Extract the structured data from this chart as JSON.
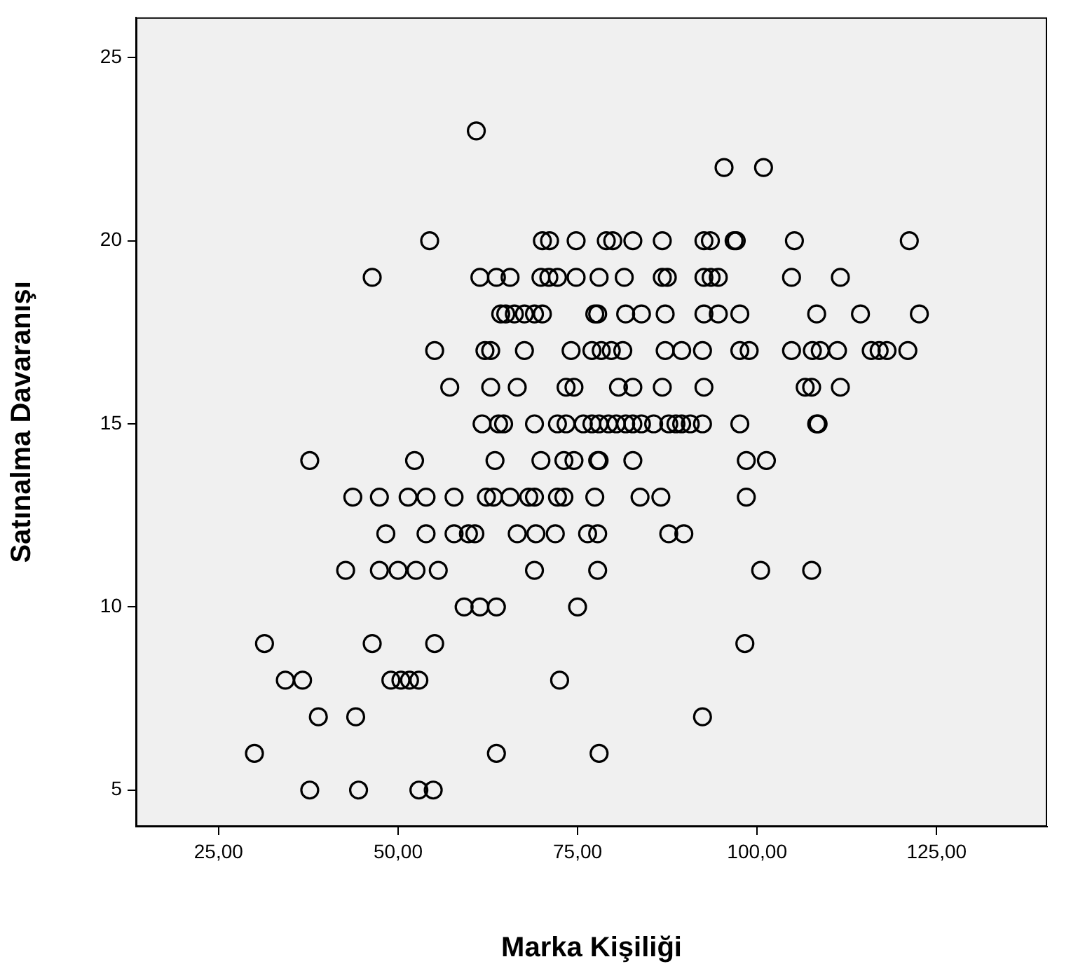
{
  "chart_data": {
    "type": "scatter",
    "xlabel": "Marka Kişiliği",
    "ylabel": "Satınalma Davaranışı",
    "xlim": [
      13.5,
      140.4
    ],
    "ylim": [
      4.0,
      26.1
    ],
    "xticks": [
      {
        "value": 25,
        "label": "25,00"
      },
      {
        "value": 50,
        "label": "50,00"
      },
      {
        "value": 75,
        "label": "75,00"
      },
      {
        "value": 100,
        "label": "100,00"
      },
      {
        "value": 125,
        "label": "125,00"
      }
    ],
    "yticks": [
      5,
      10,
      15,
      20,
      25
    ],
    "grid": false,
    "legend": false,
    "marker": "circle",
    "series": [
      {
        "color": "#000000",
        "x": [
          60.9,
          95.4,
          100.9,
          54.4,
          70.1,
          71.1,
          74.8,
          79.0,
          79.9,
          82.7,
          86.8,
          92.6,
          93.5,
          96.8,
          97.1,
          105.2,
          121.2,
          46.4,
          61.4,
          63.7,
          65.6,
          69.9,
          71.0,
          72.2,
          74.8,
          78.0,
          81.5,
          86.8,
          87.5,
          92.6,
          93.6,
          94.6,
          104.8,
          111.6,
          64.3,
          65.0,
          66.2,
          67.6,
          69.0,
          70.1,
          77.4,
          77.8,
          81.7,
          83.9,
          87.2,
          92.6,
          94.6,
          97.6,
          108.3,
          114.4,
          122.6,
          55.1,
          62.1,
          62.9,
          67.6,
          74.1,
          77.0,
          78.3,
          79.7,
          81.3,
          87.2,
          89.5,
          92.4,
          97.6,
          98.9,
          104.8,
          107.7,
          108.8,
          111.2,
          115.9,
          117.0,
          118.1,
          121.0,
          57.2,
          62.9,
          66.6,
          73.4,
          74.5,
          80.7,
          82.7,
          86.8,
          92.6,
          106.7,
          107.6,
          111.6,
          61.7,
          64.0,
          64.7,
          69.0,
          72.2,
          73.4,
          75.8,
          77.0,
          78.0,
          79.3,
          80.4,
          81.7,
          82.7,
          83.9,
          85.6,
          87.7,
          88.7,
          89.5,
          90.7,
          92.4,
          97.6,
          108.3,
          108.5,
          37.7,
          52.3,
          63.5,
          69.9,
          73.1,
          74.5,
          77.8,
          78.0,
          82.7,
          98.5,
          101.3,
          43.7,
          47.4,
          51.4,
          53.9,
          57.8,
          62.3,
          63.3,
          65.6,
          68.2,
          69.0,
          72.2,
          73.1,
          77.4,
          83.7,
          86.6,
          98.5,
          48.3,
          53.9,
          57.8,
          59.8,
          60.7,
          66.6,
          69.2,
          71.9,
          76.4,
          77.8,
          87.7,
          89.8,
          42.7,
          47.4,
          50.0,
          52.5,
          55.6,
          69.0,
          77.8,
          100.5,
          107.6,
          59.2,
          61.4,
          63.7,
          75.0,
          31.4,
          46.4,
          55.1,
          98.3,
          34.3,
          36.7,
          49.0,
          50.4,
          51.6,
          52.9,
          72.5,
          38.9,
          44.1,
          92.4,
          30.0,
          63.7,
          78.0,
          37.7,
          44.5,
          52.9,
          54.9
        ],
        "values": [
          23,
          22,
          22,
          20,
          20,
          20,
          20,
          20,
          20,
          20,
          20,
          20,
          20,
          20,
          20,
          20,
          20,
          19,
          19,
          19,
          19,
          19,
          19,
          19,
          19,
          19,
          19,
          19,
          19,
          19,
          19,
          19,
          19,
          19,
          18,
          18,
          18,
          18,
          18,
          18,
          18,
          18,
          18,
          18,
          18,
          18,
          18,
          18,
          18,
          18,
          18,
          17,
          17,
          17,
          17,
          17,
          17,
          17,
          17,
          17,
          17,
          17,
          17,
          17,
          17,
          17,
          17,
          17,
          17,
          17,
          17,
          17,
          17,
          16,
          16,
          16,
          16,
          16,
          16,
          16,
          16,
          16,
          16,
          16,
          16,
          15,
          15,
          15,
          15,
          15,
          15,
          15,
          15,
          15,
          15,
          15,
          15,
          15,
          15,
          15,
          15,
          15,
          15,
          15,
          15,
          15,
          15,
          15,
          14,
          14,
          14,
          14,
          14,
          14,
          14,
          14,
          14,
          14,
          14,
          13,
          13,
          13,
          13,
          13,
          13,
          13,
          13,
          13,
          13,
          13,
          13,
          13,
          13,
          13,
          13,
          12,
          12,
          12,
          12,
          12,
          12,
          12,
          12,
          12,
          12,
          12,
          12,
          11,
          11,
          11,
          11,
          11,
          11,
          11,
          11,
          11,
          10,
          10,
          10,
          10,
          9,
          9,
          9,
          9,
          8,
          8,
          8,
          8,
          8,
          8,
          8,
          7,
          7,
          7,
          6,
          6,
          6,
          5,
          5,
          5,
          5
        ]
      }
    ]
  }
}
